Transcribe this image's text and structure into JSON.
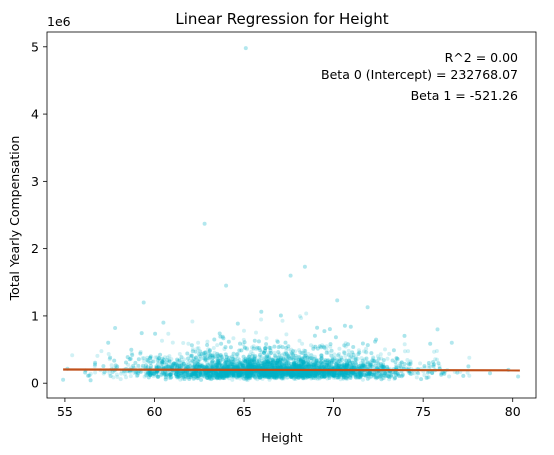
{
  "chart_data": {
    "type": "scatter",
    "title": "Linear Regression for Height",
    "xlabel": "Height",
    "ylabel": "Total Yearly Compensation",
    "y_offset_label": "1e6",
    "xlim": [
      54.0,
      81.3
    ],
    "ylim": [
      -0.22,
      5.22
    ],
    "y_scale": 1000000,
    "x_ticks": [
      55,
      60,
      65,
      70,
      75,
      80
    ],
    "x_tick_labels": [
      "55",
      "60",
      "65",
      "70",
      "75",
      "80"
    ],
    "y_ticks": [
      0,
      1,
      2,
      3,
      4,
      5
    ],
    "y_tick_labels": [
      "0",
      "1",
      "2",
      "3",
      "4",
      "5"
    ],
    "grid": false,
    "colors": {
      "points": "#00b0c8",
      "regression_line": "#c0501a"
    },
    "regression": {
      "r_squared_text": "R^2 = 0.00",
      "beta0_text": "Beta 0 (Intercept) = 232768.07",
      "beta1_text": "Beta 1 = -521.26",
      "intercept": 232768.07,
      "slope": -521.26,
      "x_range": [
        54.9,
        80.4
      ]
    },
    "notable_points": [
      {
        "x": 65.1,
        "y": 4980000
      },
      {
        "x": 62.8,
        "y": 2370000
      },
      {
        "x": 67.6,
        "y": 1600000
      },
      {
        "x": 68.4,
        "y": 1730000
      },
      {
        "x": 64.0,
        "y": 1450000
      },
      {
        "x": 59.4,
        "y": 1200000
      },
      {
        "x": 70.2,
        "y": 1230000
      },
      {
        "x": 75.8,
        "y": 800000
      },
      {
        "x": 54.9,
        "y": 50000
      },
      {
        "x": 80.3,
        "y": 100000
      },
      {
        "x": 57.8,
        "y": 820000
      },
      {
        "x": 71.9,
        "y": 1130000
      },
      {
        "x": 76.6,
        "y": 600000
      },
      {
        "x": 60.5,
        "y": 900000
      }
    ],
    "cloud": {
      "center_x": 66.5,
      "x_sd": 3.7,
      "y_median": 190000,
      "n_points": 5000
    }
  }
}
